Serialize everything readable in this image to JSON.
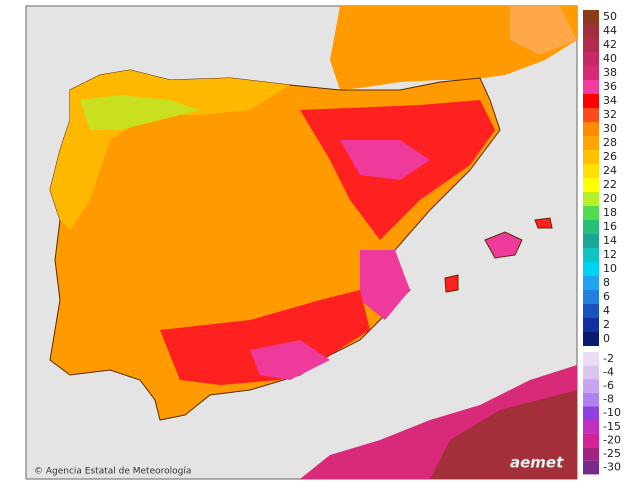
{
  "legend": {
    "items": [
      {
        "label": "50",
        "color": "#8b3a1a"
      },
      {
        "label": "44",
        "color": "#a32f3a"
      },
      {
        "label": "42",
        "color": "#b32b4c"
      },
      {
        "label": "40",
        "color": "#c52a60"
      },
      {
        "label": "38",
        "color": "#d82a78"
      },
      {
        "label": "36",
        "color": "#f03c9c"
      },
      {
        "label": "34",
        "color": "#ff0000"
      },
      {
        "label": "32",
        "color": "#ff4a1e"
      },
      {
        "label": "30",
        "color": "#ff8a00"
      },
      {
        "label": "28",
        "color": "#ffa400"
      },
      {
        "label": "26",
        "color": "#ffc000"
      },
      {
        "label": "24",
        "color": "#ffe000"
      },
      {
        "label": "22",
        "color": "#ffff00"
      },
      {
        "label": "20",
        "color": "#b8f028"
      },
      {
        "label": "18",
        "color": "#50dc50"
      },
      {
        "label": "16",
        "color": "#28c078"
      },
      {
        "label": "14",
        "color": "#1aa896"
      },
      {
        "label": "12",
        "color": "#10c4c4"
      },
      {
        "label": "10",
        "color": "#00d2f2"
      },
      {
        "label": "8",
        "color": "#20a4f0"
      },
      {
        "label": "6",
        "color": "#2080e0"
      },
      {
        "label": "4",
        "color": "#1a52c0"
      },
      {
        "label": "2",
        "color": "#1030a0"
      },
      {
        "label": "0",
        "color": "#0a1a70"
      }
    ],
    "negative_items": [
      {
        "label": "-2",
        "color": "#eadcf4"
      },
      {
        "label": "-4",
        "color": "#dac4f2"
      },
      {
        "label": "-6",
        "color": "#c8a4f0"
      },
      {
        "label": "-8",
        "color": "#b082f0"
      },
      {
        "label": "-10",
        "color": "#9040e0"
      },
      {
        "label": "-15",
        "color": "#c030c0"
      },
      {
        "label": "-20",
        "color": "#d42294"
      },
      {
        "label": "-25",
        "color": "#a42282"
      },
      {
        "label": "-30",
        "color": "#7a2a8a"
      }
    ]
  },
  "footer": {
    "credit": "© Agencia Estatal de Meteorología",
    "logo": "aemet"
  }
}
